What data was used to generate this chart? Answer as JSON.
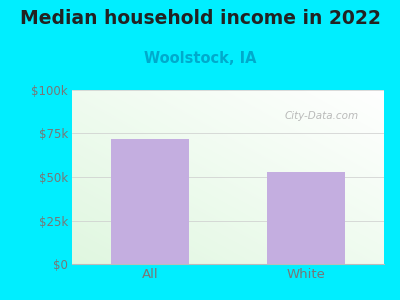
{
  "title": "Median household income in 2022",
  "subtitle": "Woolstock, IA",
  "categories": [
    "All",
    "White"
  ],
  "values": [
    72000,
    53000
  ],
  "bar_color": "#c4aee0",
  "title_fontsize": 13.5,
  "subtitle_fontsize": 10.5,
  "subtitle_color": "#00aacc",
  "tick_label_color": "#777777",
  "background_outer": "#00eeff",
  "ylim": [
    0,
    100000
  ],
  "yticks": [
    0,
    25000,
    50000,
    75000,
    100000
  ],
  "ytick_labels": [
    "$0",
    "$25k",
    "$50k",
    "$75k",
    "$100k"
  ],
  "watermark": "City-Data.com",
  "bar_width": 0.5
}
